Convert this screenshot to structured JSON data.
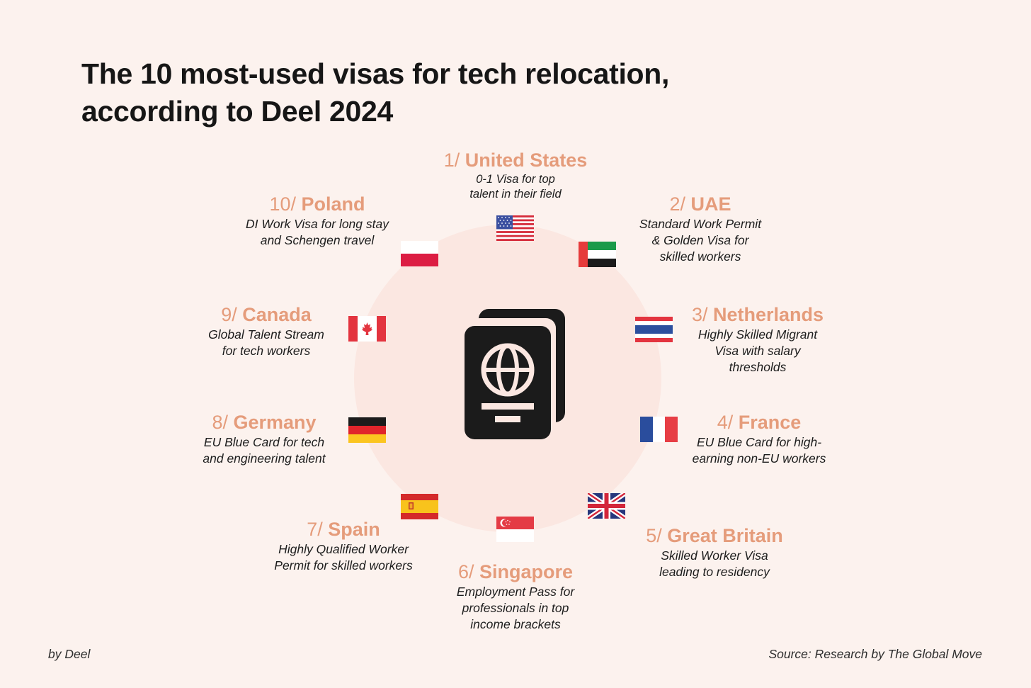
{
  "title_line1": "The 10 most-used visas for tech relocation,",
  "title_line2": "according to Deel 2024",
  "colors": {
    "background": "#fcf2ee",
    "ring": "#fbe7e1",
    "accent": "#e59c7b",
    "passport": "#1b1b1b"
  },
  "center_icon": "passport-icon",
  "countries": [
    {
      "rank": "1/",
      "name": "United States",
      "desc": "0-1 Visa for top\ntalent in their field",
      "flag": "us-flag-icon"
    },
    {
      "rank": "2/",
      "name": "UAE",
      "desc": "Standard Work Permit\n& Golden Visa for\nskilled workers",
      "flag": "uae-flag-icon"
    },
    {
      "rank": "3/",
      "name": "Netherlands",
      "desc": "Highly Skilled Migrant\nVisa with salary\nthresholds",
      "flag": "netherlands-flag-icon"
    },
    {
      "rank": "4/",
      "name": "France",
      "desc": "EU Blue Card for high-\nearning non-EU workers",
      "flag": "france-flag-icon"
    },
    {
      "rank": "5/",
      "name": "Great Britain",
      "desc": "Skilled Worker Visa\nleading to residency",
      "flag": "uk-flag-icon"
    },
    {
      "rank": "6/",
      "name": "Singapore",
      "desc": "Employment Pass for\nprofessionals in top\nincome brackets",
      "flag": "singapore-flag-icon"
    },
    {
      "rank": "7/",
      "name": "Spain",
      "desc": "Highly Qualified Worker\nPermit for skilled workers",
      "flag": "spain-flag-icon"
    },
    {
      "rank": "8/",
      "name": "Germany",
      "desc": "EU Blue Card for tech\nand engineering talent",
      "flag": "germany-flag-icon"
    },
    {
      "rank": "9/",
      "name": "Canada",
      "desc": "Global Talent Stream\nfor tech workers",
      "flag": "canada-flag-icon"
    },
    {
      "rank": "10/",
      "name": "Poland",
      "desc": "DI Work Visa for long stay\nand Schengen travel",
      "flag": "poland-flag-icon"
    }
  ],
  "footer": {
    "left": "by Deel",
    "right": "Source: Research by The Global Move"
  }
}
